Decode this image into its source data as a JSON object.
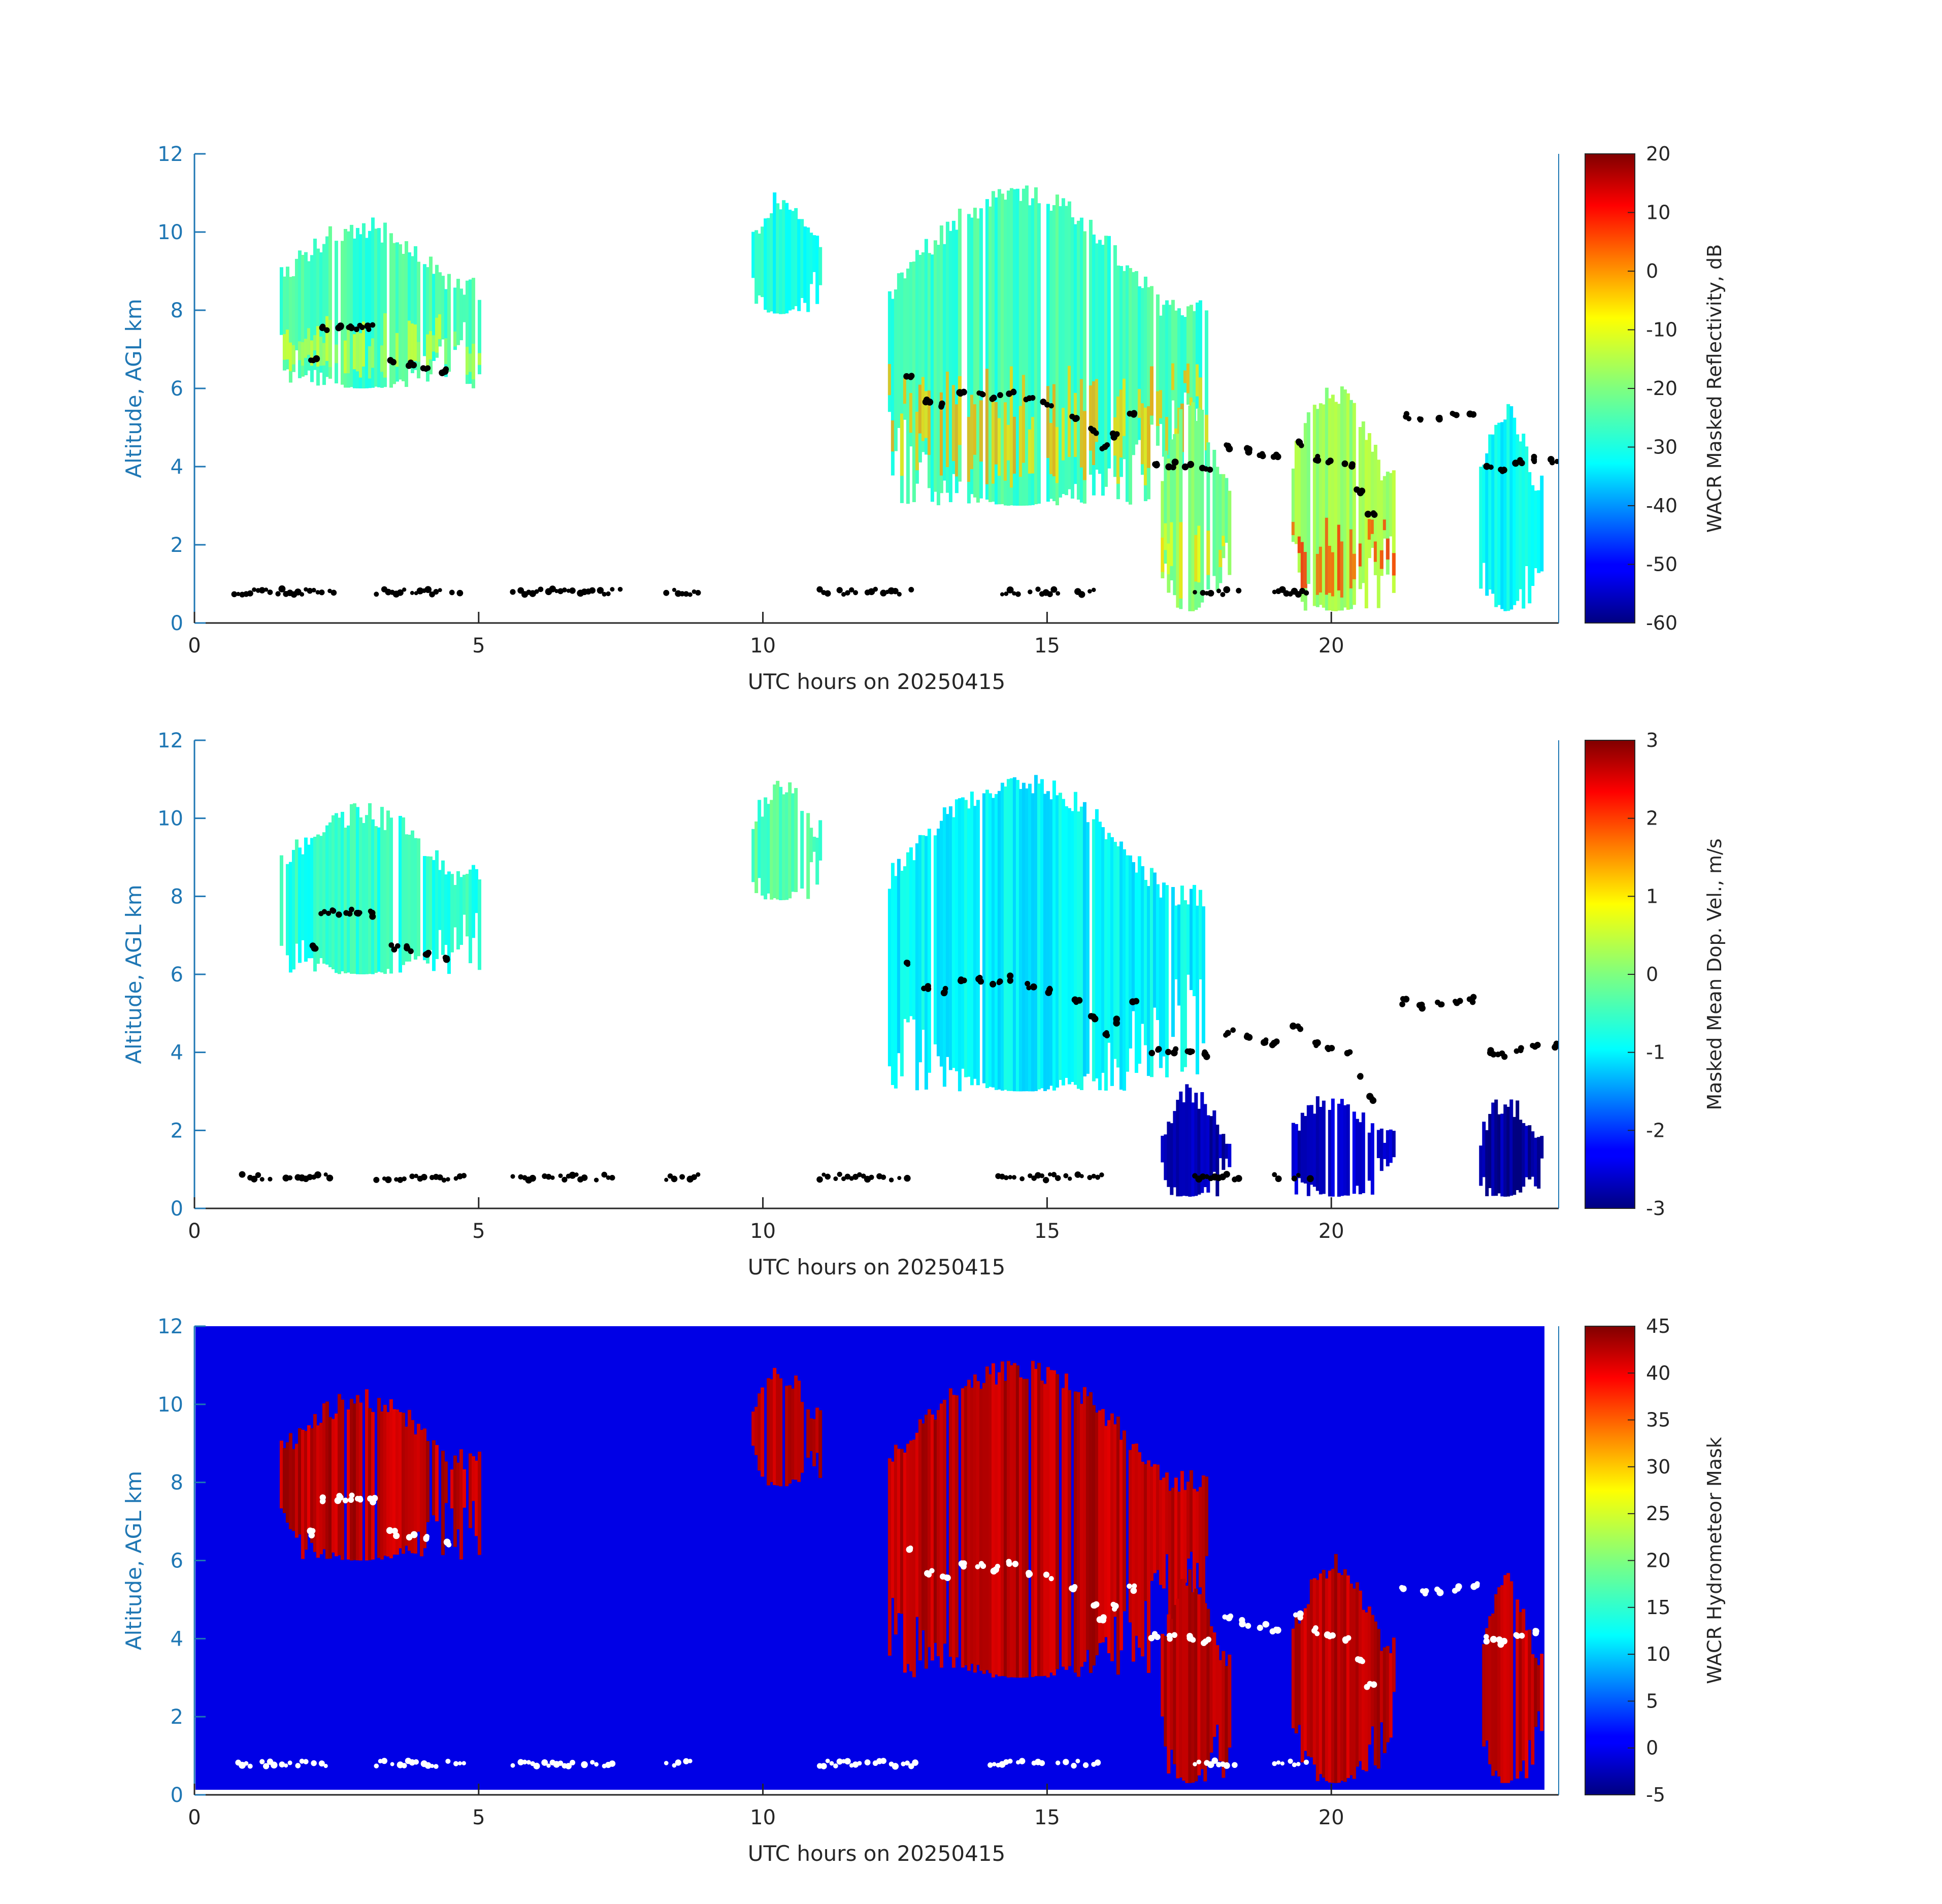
{
  "chart_data": [
    {
      "type": "heatmap",
      "panel": "reflectivity",
      "xlabel": "UTC hours on 20250415",
      "ylabel": "Altitude, AGL km",
      "xlim": [
        0,
        24
      ],
      "ylim": [
        0,
        12
      ],
      "xticks": [
        0,
        5,
        10,
        15,
        20
      ],
      "yticks": [
        0,
        2,
        4,
        6,
        8,
        10,
        12
      ],
      "background": "white",
      "colorbar": {
        "label": "WACR Masked Reflectivity, dB",
        "range": [
          -60,
          20
        ],
        "ticks": [
          20,
          10,
          0,
          -10,
          -20,
          -30,
          -40,
          -50,
          -60
        ],
        "colormap": "jet"
      },
      "cloud_regions": [
        {
          "x": [
            1.5,
            5.0
          ],
          "y": [
            6.0,
            10.4
          ],
          "value": -25,
          "core": -15
        },
        {
          "x": [
            9.8,
            11.0
          ],
          "y": [
            7.9,
            11.1
          ],
          "value": -28
        },
        {
          "x": [
            12.2,
            17.8
          ],
          "y": [
            3.0,
            11.2
          ],
          "value": -25,
          "core": -5
        },
        {
          "x": [
            17.0,
            18.2
          ],
          "y": [
            0.3,
            5.8
          ],
          "value": -20,
          "core": -10
        },
        {
          "x": [
            19.3,
            21.1
          ],
          "y": [
            0.3,
            6.2
          ],
          "value": -18,
          "core": 5
        },
        {
          "x": [
            22.6,
            23.7
          ],
          "y": [
            0.3,
            5.7
          ],
          "value": -30
        }
      ],
      "boundary_layer_points_y": 0.8
    },
    {
      "type": "heatmap",
      "panel": "doppler-velocity",
      "xlabel": "UTC hours on 20250415",
      "ylabel": "Altitude, AGL km",
      "xlim": [
        0,
        24
      ],
      "ylim": [
        0,
        12
      ],
      "xticks": [
        0,
        5,
        10,
        15,
        20
      ],
      "yticks": [
        0,
        2,
        4,
        6,
        8,
        10,
        12
      ],
      "background": "white",
      "colorbar": {
        "label": "Masked Mean Dop. Vel., m/s",
        "range": [
          -3,
          3
        ],
        "ticks": [
          3,
          2,
          1,
          0,
          -1,
          -2,
          -3
        ],
        "colormap": "jet"
      },
      "cloud_regions": [
        {
          "x": [
            1.5,
            5.0
          ],
          "y": [
            6.0,
            10.4
          ],
          "value": -0.5
        },
        {
          "x": [
            9.8,
            11.0
          ],
          "y": [
            7.9,
            11.1
          ],
          "value": -0.3
        },
        {
          "x": [
            12.2,
            17.8
          ],
          "y": [
            3.0,
            11.2
          ],
          "value": -0.8
        },
        {
          "x": [
            17.0,
            18.2
          ],
          "y": [
            0.3,
            3.2
          ],
          "value": -2.7
        },
        {
          "x": [
            19.3,
            21.1
          ],
          "y": [
            0.3,
            3.1
          ],
          "value": -2.6
        },
        {
          "x": [
            22.6,
            23.7
          ],
          "y": [
            0.3,
            3.0
          ],
          "value": -2.8
        }
      ],
      "boundary_layer_points_y": 0.8
    },
    {
      "type": "heatmap",
      "panel": "hydrometeor-mask",
      "xlabel": "UTC hours on 20250415",
      "ylabel": "Altitude, AGL km",
      "xlim": [
        0,
        24
      ],
      "ylim": [
        0,
        12
      ],
      "xticks": [
        0,
        5,
        10,
        15,
        20
      ],
      "yticks": [
        0,
        2,
        4,
        6,
        8,
        10,
        12
      ],
      "background": "#0000e6",
      "colorbar": {
        "label": "WACR Hydrometeor Mask",
        "range": [
          -5,
          45
        ],
        "ticks": [
          45,
          40,
          35,
          30,
          25,
          20,
          15,
          10,
          5,
          0,
          -5
        ],
        "colormap": "jet"
      },
      "cloud_regions": [
        {
          "x": [
            1.5,
            5.0
          ],
          "y": [
            6.0,
            10.4
          ],
          "value": 42
        },
        {
          "x": [
            9.8,
            11.0
          ],
          "y": [
            7.9,
            11.1
          ],
          "value": 42
        },
        {
          "x": [
            12.2,
            17.8
          ],
          "y": [
            3.0,
            11.2
          ],
          "value": 42
        },
        {
          "x": [
            17.0,
            18.2
          ],
          "y": [
            0.3,
            5.8
          ],
          "value": 42
        },
        {
          "x": [
            19.3,
            21.1
          ],
          "y": [
            0.3,
            6.2
          ],
          "value": 42
        },
        {
          "x": [
            22.6,
            23.7
          ],
          "y": [
            0.3,
            5.7
          ],
          "value": 42
        }
      ],
      "boundary_layer_points_y": 0.8
    }
  ]
}
